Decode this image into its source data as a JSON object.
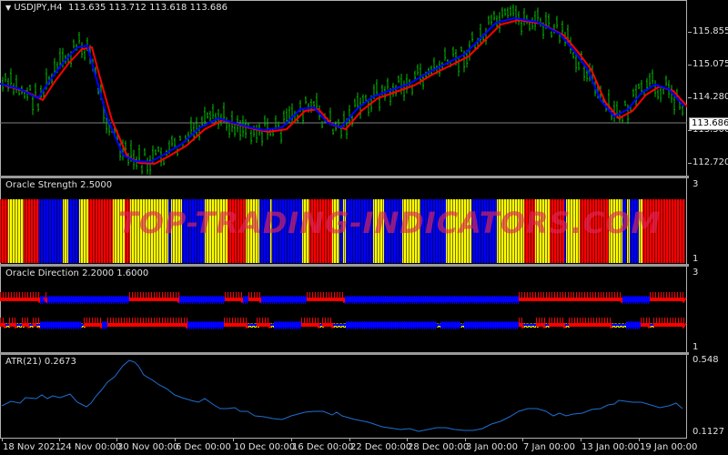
{
  "main_panel": {
    "symbol_label": "USDJPY,H4",
    "ohlc": "113.635 113.712 113.618 113.686",
    "current_price": "113.686",
    "y_labels": [
      "115.855",
      "115.075",
      "114.280",
      "113.500",
      "112.720"
    ]
  },
  "strength_panel": {
    "title": "Oracle Strength 2.5000",
    "y_labels": [
      "3",
      "1"
    ]
  },
  "direction_panel": {
    "title": "Oracle Direction 2.2000 1.6000",
    "y_labels": [
      "3",
      "1"
    ]
  },
  "atr_panel": {
    "title": "ATR(21) 0.2673",
    "y_labels": [
      "0.548",
      "0.1127"
    ]
  },
  "time_axis": [
    "18 Nov 2021",
    "24 Nov 00:00",
    "30 Nov 00:00",
    "6 Dec 00:00",
    "10 Dec 00:00",
    "16 Dec 00:00",
    "22 Dec 00:00",
    "28 Dec 00:00",
    "3 Jan 00:00",
    "7 Jan 00:00",
    "13 Jan 00:00",
    "19 Jan 00:00"
  ],
  "watermark": "TOP-TRADING-INDICATORS.COM",
  "colors": {
    "background": "#000000",
    "bars": "#00c000",
    "ma_fast": "#0000ff",
    "ma_slow": "#ff0000",
    "strength_red": "#ff0000",
    "strength_yellow": "#ffff00",
    "strength_blue": "#0000ff",
    "atr_line": "#1e6fd0"
  },
  "chart_data": [
    {
      "type": "line",
      "title": "USDJPY,H4",
      "subtitle": "113.635 113.712 113.618 113.686",
      "xlabel": "",
      "ylabel": "",
      "ylim": [
        112.4,
        116.2
      ],
      "x": [
        "18 Nov 2021",
        "24 Nov 00:00",
        "30 Nov 00:00",
        "6 Dec 00:00",
        "10 Dec 00:00",
        "16 Dec 00:00",
        "22 Dec 00:00",
        "28 Dec 00:00",
        "3 Jan 00:00",
        "7 Jan 00:00",
        "13 Jan 00:00",
        "19 Jan 00:00"
      ],
      "series": [
        {
          "name": "Price (bars)",
          "values": [
            114.2,
            115.4,
            113.0,
            113.6,
            114.0,
            113.7,
            114.3,
            115.0,
            115.9,
            115.4,
            113.8,
            114.4
          ]
        },
        {
          "name": "MA fast (blue)",
          "values": [
            114.3,
            115.5,
            112.9,
            113.3,
            113.9,
            113.8,
            114.1,
            114.9,
            115.95,
            115.2,
            113.9,
            114.5
          ]
        },
        {
          "name": "MA slow (red)",
          "values": [
            114.3,
            115.3,
            112.9,
            113.2,
            113.9,
            113.7,
            114.1,
            114.8,
            115.9,
            115.4,
            113.7,
            114.5
          ]
        }
      ],
      "current_price": 113.686,
      "grid": false
    },
    {
      "type": "bar",
      "title": "Oracle Strength 2.5000",
      "ylim": [
        1,
        3
      ],
      "legend": [
        "red",
        "yellow",
        "blue"
      ],
      "segments": [
        "red",
        "yellow",
        "red",
        "yellow",
        "blue",
        "yellow",
        "blue",
        "yellow",
        "red",
        "yellow",
        "red",
        "yellow",
        "blue",
        "yellow",
        "blue",
        "yellow",
        "red",
        "yellow",
        "blue",
        "yellow",
        "blue",
        "yellow",
        "blue",
        "yellow",
        "red",
        "yellow",
        "blue",
        "yellow",
        "blue",
        "yellow",
        "blue",
        "yellow",
        "blue",
        "yellow",
        "blue",
        "yellow",
        "red",
        "yellow",
        "red",
        "blue",
        "red",
        "yellow",
        "red",
        "yellow",
        "blue",
        "yellow",
        "blue",
        "yellow",
        "red"
      ],
      "value": 2.5
    },
    {
      "type": "scatter",
      "title": "Oracle Direction 2.2000 1.6000",
      "ylim": [
        1,
        3
      ],
      "series": [
        {
          "name": "Direction 1",
          "level": 2.2
        },
        {
          "name": "Direction 2",
          "level": 1.6
        }
      ]
    },
    {
      "type": "line",
      "title": "ATR(21) 0.2673",
      "ylim": [
        0.1127,
        0.548
      ],
      "x": [
        "18 Nov 2021",
        "24 Nov 00:00",
        "30 Nov 00:00",
        "6 Dec 00:00",
        "10 Dec 00:00",
        "16 Dec 00:00",
        "22 Dec 00:00",
        "28 Dec 00:00",
        "3 Jan 00:00",
        "7 Jan 00:00",
        "13 Jan 00:00",
        "19 Jan 00:00"
      ],
      "series": [
        {
          "name": "ATR(21)",
          "values": [
            0.3,
            0.32,
            0.54,
            0.36,
            0.26,
            0.27,
            0.2,
            0.13,
            0.15,
            0.28,
            0.31,
            0.29
          ]
        }
      ],
      "current": 0.2673
    }
  ]
}
